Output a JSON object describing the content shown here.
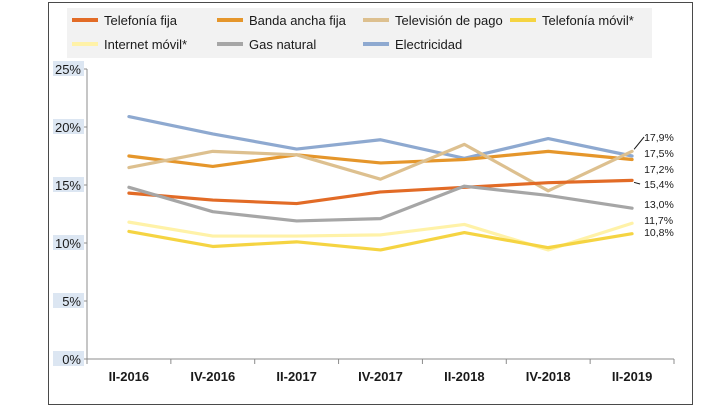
{
  "chart_data": {
    "type": "line",
    "categories": [
      "II-2016",
      "IV-2016",
      "II-2017",
      "IV-2017",
      "II-2018",
      "IV-2018",
      "II-2019"
    ],
    "ylim": [
      0,
      25
    ],
    "yticks": [
      "0%",
      "5%",
      "10%",
      "15%",
      "20%",
      "25%"
    ],
    "series": [
      {
        "name": "Electricidad",
        "color": "#8ea9d0",
        "values": [
          20.9,
          19.4,
          18.1,
          18.9,
          17.3,
          19.0,
          17.5
        ]
      },
      {
        "name": "Banda ancha fija",
        "color": "#e5962b",
        "values": [
          17.5,
          16.6,
          17.6,
          16.9,
          17.2,
          17.9,
          17.2
        ]
      },
      {
        "name": "Televisión de pago",
        "color": "#ddc08f",
        "values": [
          16.5,
          17.9,
          17.6,
          15.5,
          18.5,
          14.5,
          17.9
        ]
      },
      {
        "name": "Telefonía fija",
        "color": "#e26b26",
        "values": [
          14.3,
          13.7,
          13.4,
          14.4,
          14.8,
          15.2,
          15.4
        ]
      },
      {
        "name": "Gas natural",
        "color": "#a6a6a6",
        "values": [
          14.8,
          12.7,
          11.9,
          12.1,
          14.9,
          14.1,
          13.0
        ]
      },
      {
        "name": "Internet móvil*",
        "color": "#fff2a8",
        "values": [
          11.8,
          10.6,
          10.6,
          10.7,
          11.6,
          9.4,
          11.7
        ]
      },
      {
        "name": "Telefonía móvil*",
        "color": "#f5d442",
        "values": [
          11.0,
          9.7,
          10.1,
          9.4,
          10.9,
          9.6,
          10.8
        ]
      }
    ],
    "end_labels": [
      "17,9%",
      "17,5%",
      "17,2%",
      "15,4%",
      "13,0%",
      "11,7%",
      "10,8%"
    ],
    "legend": [
      {
        "name": "Telefonía fija",
        "color": "#e26b26"
      },
      {
        "name": "Banda ancha fija",
        "color": "#e5962b"
      },
      {
        "name": "Televisión de pago",
        "color": "#ddc08f"
      },
      {
        "name": "Telefonía móvil*",
        "color": "#f5d442"
      },
      {
        "name": "Internet móvil*",
        "color": "#fff2a8"
      },
      {
        "name": "Gas natural",
        "color": "#a6a6a6"
      },
      {
        "name": "Electricidad",
        "color": "#8ea9d0"
      }
    ],
    "grid": false,
    "legend_position": "top"
  }
}
